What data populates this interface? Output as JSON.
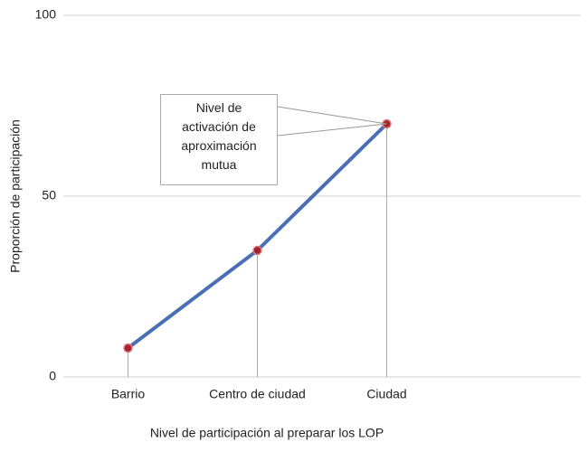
{
  "chart_data": {
    "type": "line",
    "categories": [
      "Barrio",
      "Centro de ciudad",
      "Ciudad"
    ],
    "series": [
      {
        "name": "Proporción de participación",
        "color": "#4a6fb5",
        "values": [
          8,
          35,
          70
        ]
      }
    ],
    "marker_color": "#a3232b",
    "ylim": [
      0,
      100
    ],
    "yticks": [
      0,
      50,
      100
    ],
    "grid": true,
    "xlabel": "Nivel de participación al preparar los LOP",
    "ylabel": "Proporción de participación",
    "annotation": {
      "text": "Nivel de activación de aproximación mutua",
      "point": 2
    }
  }
}
